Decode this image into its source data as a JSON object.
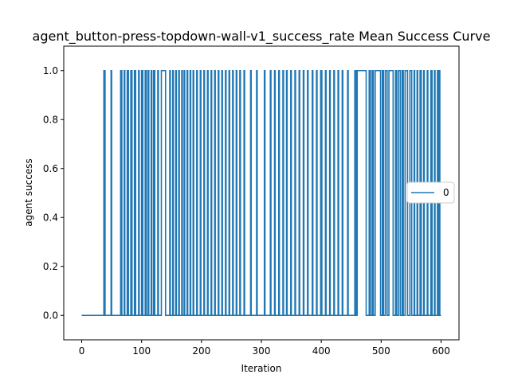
{
  "chart_data": {
    "type": "line",
    "title": "agent_button-press-topdown-wall-v1_success_rate Mean Success Curve",
    "xlabel": "Iteration",
    "ylabel": "agent success",
    "xlim": [
      -30,
      630
    ],
    "ylim": [
      -0.1,
      1.1
    ],
    "x_ticks": [
      0,
      100,
      200,
      300,
      400,
      500,
      600
    ],
    "x_tick_labels": [
      "0",
      "100",
      "200",
      "300",
      "400",
      "500",
      "600"
    ],
    "y_ticks": [
      0.0,
      0.2,
      0.4,
      0.6,
      0.8,
      1.0
    ],
    "y_tick_labels": [
      "0.0",
      "0.2",
      "0.4",
      "0.6",
      "0.8",
      "1.0"
    ],
    "grid": false,
    "legend_position": "center-right",
    "series": [
      {
        "name": "0",
        "color": "#1f77b4",
        "x_start": 0,
        "x_end": 600,
        "success_intervals": [
          [
            37,
            39
          ],
          [
            49,
            50
          ],
          [
            65,
            67
          ],
          [
            71,
            72
          ],
          [
            76,
            78
          ],
          [
            82,
            84
          ],
          [
            88,
            90
          ],
          [
            95,
            96
          ],
          [
            100,
            102
          ],
          [
            106,
            108
          ],
          [
            111,
            112
          ],
          [
            116,
            117
          ],
          [
            120,
            122
          ],
          [
            127,
            128
          ],
          [
            133,
            140
          ],
          [
            147,
            148
          ],
          [
            152,
            153
          ],
          [
            157,
            158
          ],
          [
            162,
            163
          ],
          [
            167,
            168
          ],
          [
            171,
            172
          ],
          [
            176,
            177
          ],
          [
            181,
            182
          ],
          [
            186,
            187
          ],
          [
            192,
            193
          ],
          [
            198,
            199
          ],
          [
            204,
            205
          ],
          [
            210,
            211
          ],
          [
            216,
            217
          ],
          [
            222,
            223
          ],
          [
            228,
            229
          ],
          [
            234,
            235
          ],
          [
            240,
            241
          ],
          [
            246,
            247
          ],
          [
            252,
            253
          ],
          [
            258,
            259
          ],
          [
            264,
            265
          ],
          [
            271,
            272
          ],
          [
            282,
            283
          ],
          [
            292,
            293
          ],
          [
            305,
            306
          ],
          [
            315,
            316
          ],
          [
            322,
            323
          ],
          [
            329,
            330
          ],
          [
            336,
            337
          ],
          [
            342,
            343
          ],
          [
            349,
            350
          ],
          [
            356,
            357
          ],
          [
            363,
            364
          ],
          [
            370,
            371
          ],
          [
            377,
            378
          ],
          [
            385,
            386
          ],
          [
            392,
            393
          ],
          [
            399,
            401
          ],
          [
            407,
            408
          ],
          [
            414,
            415
          ],
          [
            421,
            422
          ],
          [
            428,
            429
          ],
          [
            435,
            436
          ],
          [
            444,
            445
          ],
          [
            456,
            458
          ],
          [
            460,
            475
          ],
          [
            480,
            482
          ],
          [
            485,
            487
          ],
          [
            490,
            499
          ],
          [
            502,
            504
          ],
          [
            507,
            510
          ],
          [
            513,
            520
          ],
          [
            524,
            526
          ],
          [
            529,
            532
          ],
          [
            535,
            537
          ],
          [
            540,
            544
          ],
          [
            548,
            551
          ],
          [
            555,
            556
          ],
          [
            560,
            561
          ],
          [
            565,
            567
          ],
          [
            571,
            572
          ],
          [
            577,
            578
          ],
          [
            583,
            585
          ],
          [
            589,
            590
          ],
          [
            594,
            595
          ],
          [
            597,
            598
          ]
        ]
      }
    ]
  }
}
